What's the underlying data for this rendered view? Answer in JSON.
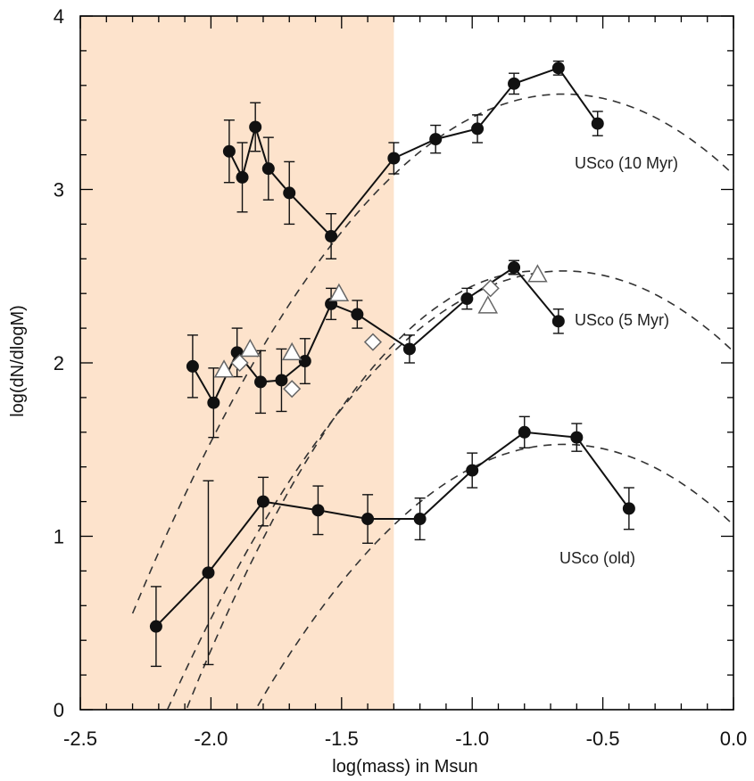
{
  "chart_data": {
    "type": "scatter",
    "title": "",
    "xlabel": "log(mass) in Msun",
    "ylabel": "log(dN/dlogM)",
    "xlim": [
      -2.5,
      0.0
    ],
    "ylim": [
      0,
      4
    ],
    "x_ticks": [
      "-2.5",
      "-2.0",
      "-1.5",
      "-1.0",
      "-0.5",
      "0.0"
    ],
    "y_ticks": [
      "0",
      "1",
      "2",
      "3",
      "4"
    ],
    "shaded_region": {
      "x_range": [
        -2.5,
        -1.3
      ],
      "color": "#fde3cc"
    },
    "grid": false,
    "series": [
      {
        "name": "USco (10 Myr)",
        "marker": "filled-circle",
        "x": [
          -1.93,
          -1.88,
          -1.83,
          -1.78,
          -1.7,
          -1.54,
          -1.3,
          -1.14,
          -0.98,
          -0.84,
          -0.67,
          -0.52
        ],
        "y": [
          3.22,
          3.07,
          3.36,
          3.12,
          2.98,
          2.73,
          3.18,
          3.29,
          3.35,
          3.61,
          3.7,
          3.38
        ],
        "err": [
          0.18,
          0.2,
          0.14,
          0.18,
          0.18,
          0.13,
          0.09,
          0.08,
          0.08,
          0.06,
          0.04,
          0.07
        ]
      },
      {
        "name": "USco (5 Myr)",
        "marker": "filled-circle",
        "x": [
          -2.07,
          -1.99,
          -1.9,
          -1.81,
          -1.73,
          -1.64,
          -1.54,
          -1.44,
          -1.24,
          -1.02,
          -0.84,
          -0.67
        ],
        "y": [
          1.98,
          1.77,
          2.06,
          1.89,
          1.9,
          2.01,
          2.34,
          2.28,
          2.08,
          2.37,
          2.55,
          2.24
        ],
        "err": [
          0.18,
          0.2,
          0.14,
          0.18,
          0.18,
          0.13,
          0.09,
          0.08,
          0.08,
          0.06,
          0.04,
          0.07
        ]
      },
      {
        "name": "USco (old)",
        "marker": "filled-circle",
        "x": [
          -2.21,
          -2.01,
          -1.8,
          -1.59,
          -1.4,
          -1.2,
          -1.0,
          -0.8,
          -0.6,
          -0.4
        ],
        "y": [
          0.48,
          0.79,
          1.2,
          1.15,
          1.1,
          1.1,
          1.38,
          1.6,
          1.57,
          1.16
        ],
        "err": [
          0.23,
          0.53,
          0.14,
          0.14,
          0.14,
          0.12,
          0.1,
          0.09,
          0.08,
          0.12
        ]
      },
      {
        "marker": "open-triangle",
        "x": [
          -1.95,
          -1.85,
          -1.69,
          -1.51,
          -0.94,
          -0.75
        ],
        "y": [
          1.96,
          2.08,
          2.06,
          2.4,
          2.33,
          2.51
        ]
      },
      {
        "marker": "open-diamond",
        "x": [
          -1.89,
          -1.69,
          -1.38,
          -0.93
        ],
        "y": [
          2.0,
          1.85,
          2.12,
          2.43
        ]
      }
    ],
    "model_curves": [
      {
        "style": "dashed",
        "x_range": [
          -2.3,
          0.0
        ],
        "peak_x": -0.65,
        "peak_y": 3.55,
        "curvature": 1.1
      },
      {
        "style": "dashed",
        "x_range": [
          -2.3,
          0.0
        ],
        "peak_x": -0.65,
        "peak_y": 2.53,
        "curvature": 1.1
      },
      {
        "style": "dashed",
        "x_range": [
          -2.3,
          0.0
        ],
        "peak_x": -0.65,
        "peak_y": 1.53,
        "curvature": 1.1
      },
      {
        "style": "dashed",
        "x_range": [
          -2.2,
          -0.75
        ],
        "peak_x": -0.75,
        "peak_y": 2.53,
        "curvature": 1.4
      }
    ]
  }
}
